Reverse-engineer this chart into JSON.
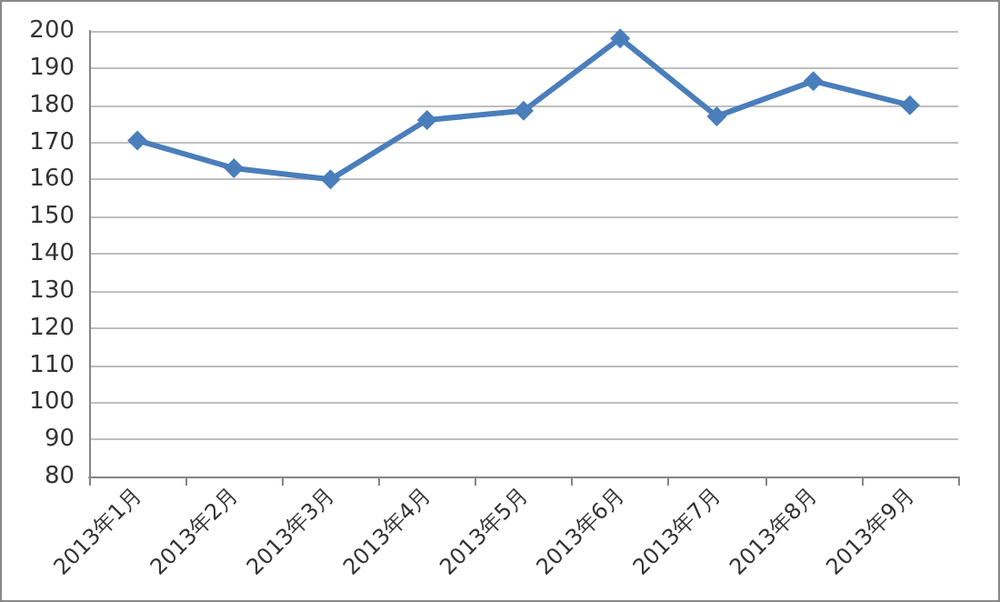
{
  "chart_data": {
    "type": "line",
    "categories": [
      "2013年1月",
      "2013年2月",
      "2013年3月",
      "2013年4月",
      "2013年5月",
      "2013年6月",
      "2013年7月",
      "2013年8月",
      "2013年9月"
    ],
    "series": [
      {
        "color": "#4a7ebb",
        "values": [
          170.5,
          163,
          160,
          176,
          178.5,
          198,
          177,
          186.5,
          180
        ]
      }
    ],
    "ylim": [
      80,
      200
    ],
    "yticks": [
      80,
      90,
      100,
      110,
      120,
      130,
      140,
      150,
      160,
      170,
      180,
      190,
      200
    ],
    "grid": "y",
    "marker": "diamond",
    "line_style": "solid"
  }
}
